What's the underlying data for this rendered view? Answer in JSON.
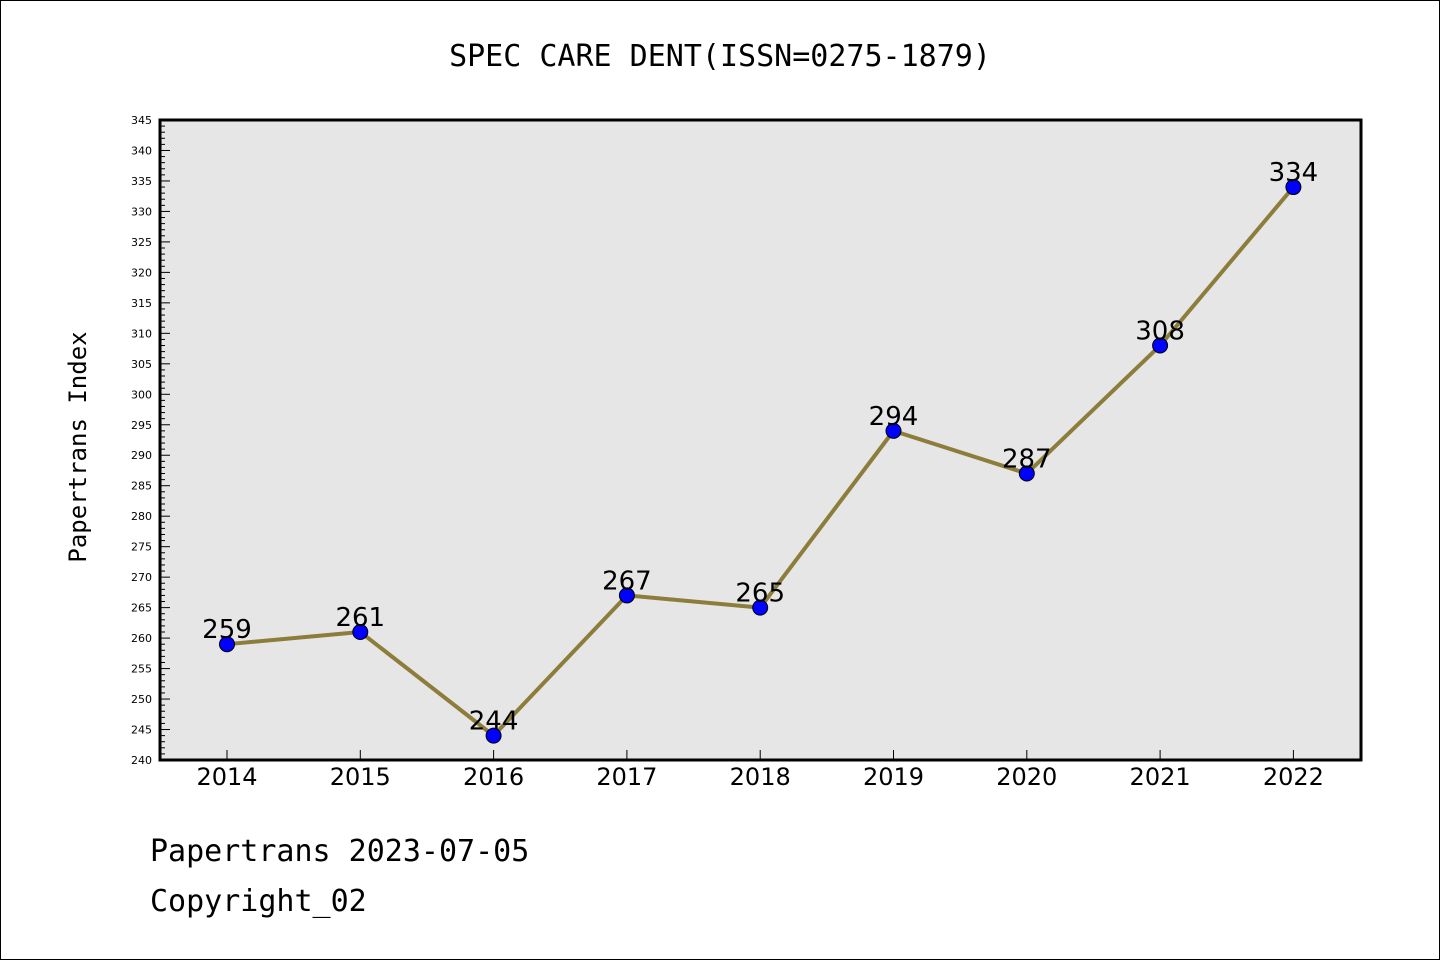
{
  "chart_data": {
    "type": "line",
    "title": "SPEC CARE DENT(ISSN=0275-1879)",
    "xlabel": "",
    "ylabel": "Papertrans Index",
    "categories": [
      "2014",
      "2015",
      "2016",
      "2017",
      "2018",
      "2019",
      "2020",
      "2021",
      "2022"
    ],
    "series": [
      {
        "values": [
          259,
          261,
          244,
          267,
          265,
          294,
          287,
          308,
          334
        ]
      }
    ],
    "ylim": [
      240,
      345
    ],
    "y_major_step": 5,
    "y_minor_step": 1,
    "grid": false,
    "data_labels": true,
    "colors": {
      "line": "#8c7d3b",
      "marker": "#0000ff",
      "plot_background": "#e6e6e6"
    }
  },
  "footer": {
    "line1": "Papertrans 2023-07-05",
    "line2": "Copyright_02"
  }
}
